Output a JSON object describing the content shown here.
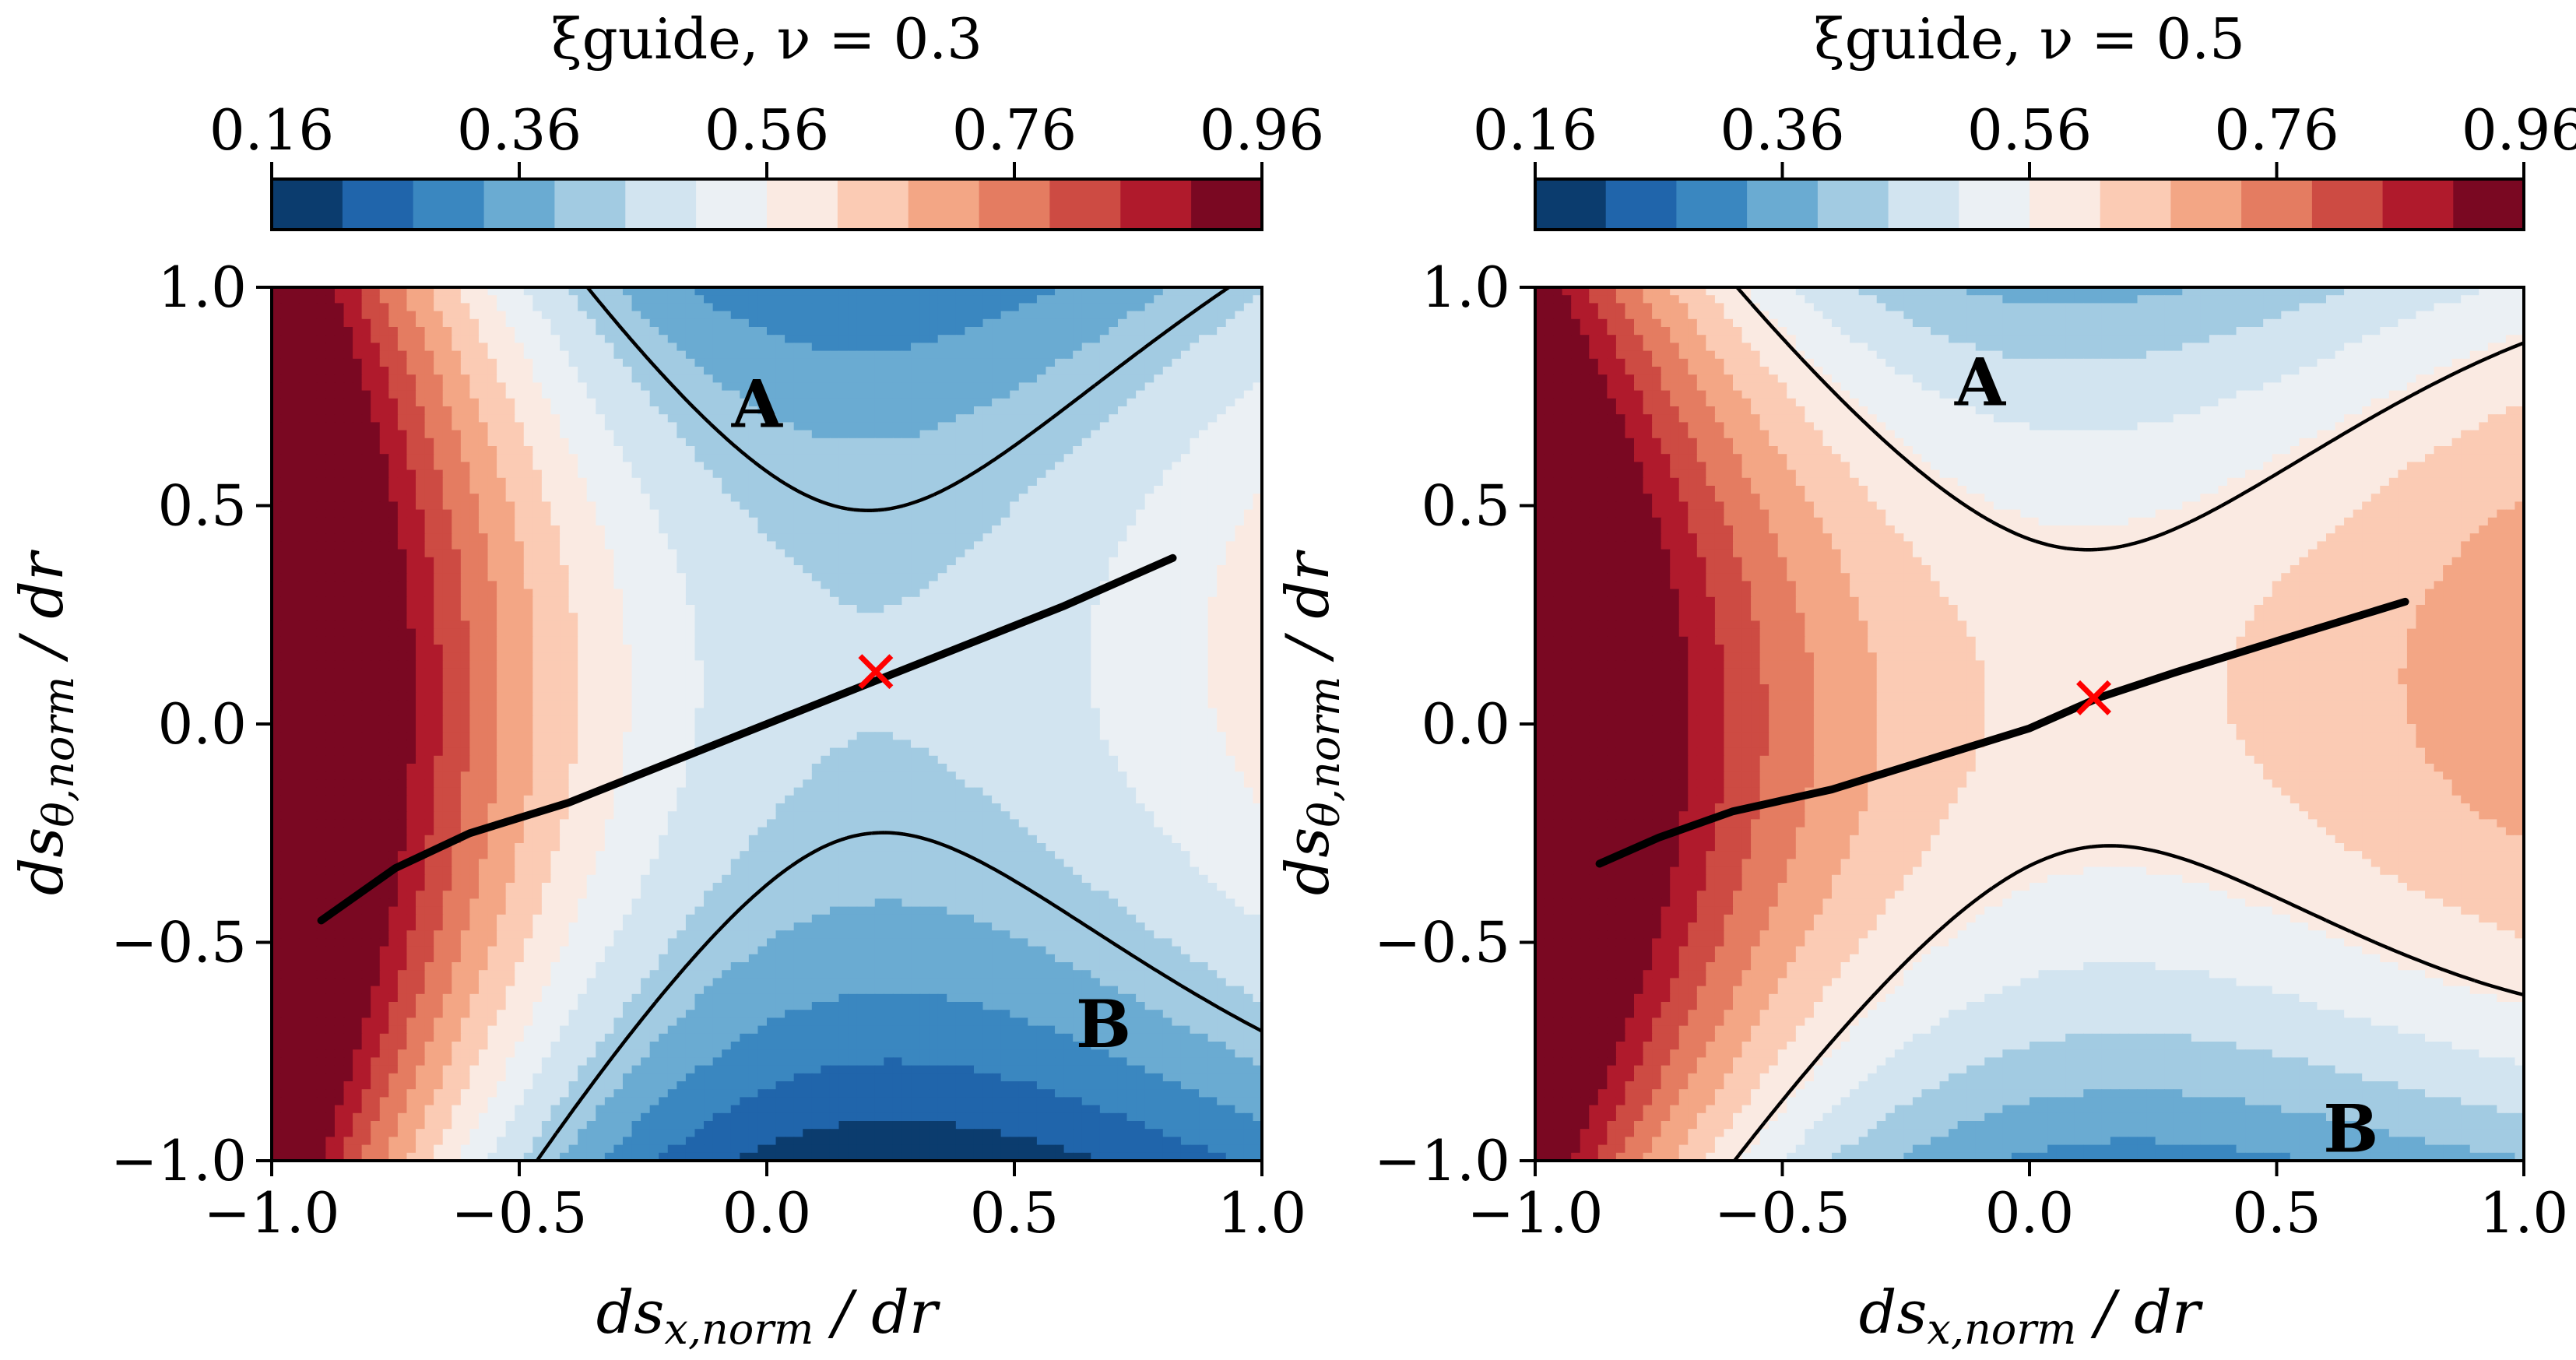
{
  "chart_data": [
    {
      "type": "contourf",
      "title": "ξguide, ν = 0.3",
      "colorbar": {
        "ticks": [
          0.16,
          0.36,
          0.56,
          0.76,
          0.96
        ],
        "tick_labels": [
          "0.16",
          "0.36",
          "0.56",
          "0.76",
          "0.96"
        ],
        "range": [
          0.16,
          0.96
        ],
        "levels": [
          0.16,
          0.2171,
          0.2743,
          0.3314,
          0.3886,
          0.4457,
          0.5029,
          0.56,
          0.6171,
          0.6743,
          0.7314,
          0.7886,
          0.8457,
          0.9029,
          0.96
        ]
      },
      "xlabel": "dsx,norm / dr",
      "ylabel": "dsθ,norm / dr",
      "xlim": [
        -1.0,
        1.0
      ],
      "ylim": [
        -1.0,
        1.0
      ],
      "xticks": [
        -1.0,
        -0.5,
        0.0,
        0.5,
        1.0
      ],
      "xtick_labels": [
        "−1.0",
        "−0.5",
        "0.0",
        "0.5",
        "1.0"
      ],
      "yticks": [
        -1.0,
        -0.5,
        0.0,
        0.5,
        1.0
      ],
      "ytick_labels": [
        "−1.0",
        "−0.5",
        "0.0",
        "0.5",
        "1.0"
      ],
      "field": {
        "base": 0.45,
        "saddle_x": 0.22,
        "saddle_y": 0.12,
        "a": 0.36,
        "b": 0.03,
        "c": 0.22,
        "e": -0.17
      },
      "curve": {
        "x": [
          -0.9,
          -0.75,
          -0.6,
          -0.4,
          -0.2,
          0.0,
          0.2,
          0.4,
          0.6,
          0.82
        ],
        "y": [
          -0.45,
          -0.33,
          -0.25,
          -0.18,
          -0.09,
          0.0,
          0.09,
          0.18,
          0.27,
          0.38
        ]
      },
      "marker": {
        "x": 0.22,
        "y": 0.12,
        "symbol": "x",
        "color": "#ff0000"
      },
      "annotations": [
        {
          "text": "A",
          "x": -0.02,
          "y": 0.73
        },
        {
          "text": "B",
          "x": 0.68,
          "y": -0.69
        }
      ]
    },
    {
      "type": "contourf",
      "title": "ξguide, ν = 0.5",
      "colorbar": {
        "ticks": [
          0.16,
          0.36,
          0.56,
          0.76,
          0.96
        ],
        "tick_labels": [
          "0.16",
          "0.36",
          "0.56",
          "0.76",
          "0.96"
        ],
        "range": [
          0.16,
          0.96
        ],
        "levels": [
          0.16,
          0.2171,
          0.2743,
          0.3314,
          0.3886,
          0.4457,
          0.5029,
          0.56,
          0.6171,
          0.6743,
          0.7314,
          0.7886,
          0.8457,
          0.9029,
          0.96
        ]
      },
      "xlabel": "dsx,norm / dr",
      "ylabel": "dsθ,norm / dr",
      "xlim": [
        -1.0,
        1.0
      ],
      "ylim": [
        -1.0,
        1.0
      ],
      "xticks": [
        -1.0,
        -0.5,
        0.0,
        0.5,
        1.0
      ],
      "xtick_labels": [
        "−1.0",
        "−0.5",
        "0.0",
        "0.5",
        "1.0"
      ],
      "yticks": [
        -1.0,
        -0.5,
        0.0,
        0.5,
        1.0
      ],
      "ytick_labels": [
        "−1.0",
        "−0.5",
        "0.0",
        "0.5",
        "1.0"
      ],
      "field": {
        "base": 0.6,
        "saddle_x": 0.14,
        "saddle_y": 0.06,
        "a": 0.3,
        "b": 0.04,
        "c": 0.26,
        "e": -0.17
      },
      "curve": {
        "x": [
          -0.87,
          -0.75,
          -0.6,
          -0.4,
          -0.2,
          0.0,
          0.14,
          0.3,
          0.5,
          0.76
        ],
        "y": [
          -0.32,
          -0.26,
          -0.2,
          -0.15,
          -0.08,
          -0.01,
          0.06,
          0.12,
          0.19,
          0.28
        ]
      },
      "marker": {
        "x": 0.13,
        "y": 0.06,
        "symbol": "x",
        "color": "#ff0000"
      },
      "annotations": [
        {
          "text": "A",
          "x": -0.1,
          "y": 0.78
        },
        {
          "text": "B",
          "x": 0.65,
          "y": -0.93
        }
      ]
    }
  ],
  "colors": {
    "palette": [
      "#0b3c6e",
      "#2065ab",
      "#3a87c0",
      "#6aabd2",
      "#a2cbe2",
      "#d2e4f0",
      "#ebf0f4",
      "#faeae2",
      "#fbcbb4",
      "#f3a685",
      "#e47c61",
      "#cd4b43",
      "#b01a2c",
      "#7a0822"
    ],
    "marker": "#ff0000",
    "curve": "#000000"
  }
}
